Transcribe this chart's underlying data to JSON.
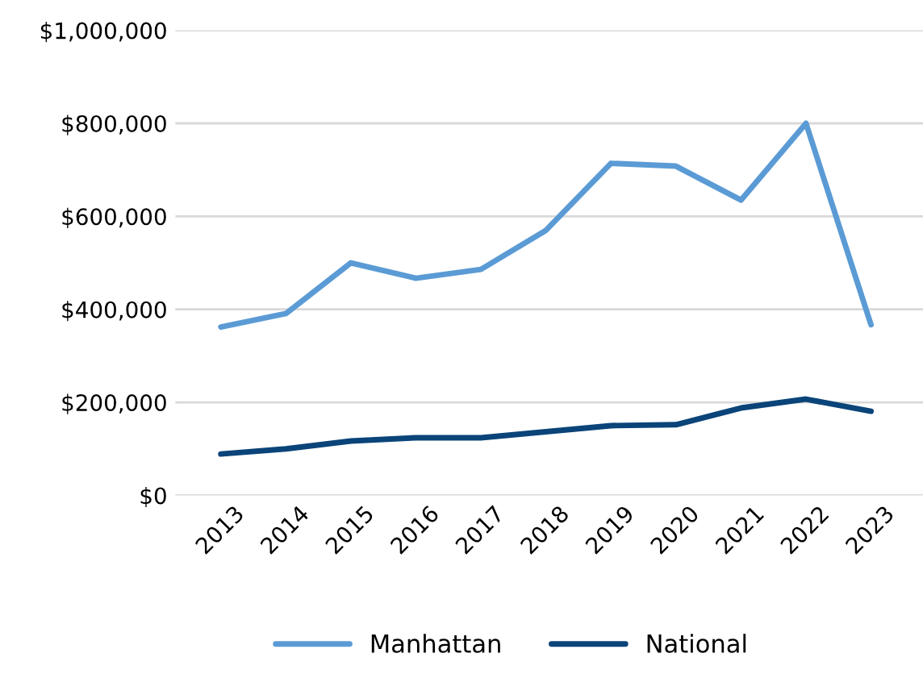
{
  "chart_data": {
    "type": "line",
    "categories": [
      "2013",
      "2014",
      "2015",
      "2016",
      "2017",
      "2018",
      "2019",
      "2020",
      "2021",
      "2022",
      "2023"
    ],
    "series": [
      {
        "name": "Manhattan",
        "color": "#5b9bd5",
        "values": [
          362000,
          391000,
          500000,
          467000,
          486000,
          570000,
          714000,
          708000,
          635000,
          800000,
          367000
        ]
      },
      {
        "name": "National",
        "color": "#0a4479",
        "values": [
          89000,
          100000,
          117000,
          124000,
          124000,
          137000,
          150000,
          152000,
          188000,
          207000,
          181000
        ]
      }
    ],
    "ylim": [
      0,
      1000000
    ],
    "yticks": [
      {
        "value": 0,
        "label": "$0"
      },
      {
        "value": 200000,
        "label": "$200,000"
      },
      {
        "value": 400000,
        "label": "$400,000"
      },
      {
        "value": 600000,
        "label": "$600,000"
      },
      {
        "value": 800000,
        "label": "$800,000"
      },
      {
        "value": 1000000,
        "label": "$1,000,000"
      }
    ],
    "grid": "y",
    "legend": "bottom",
    "marker": "none",
    "line_style": "solid"
  }
}
